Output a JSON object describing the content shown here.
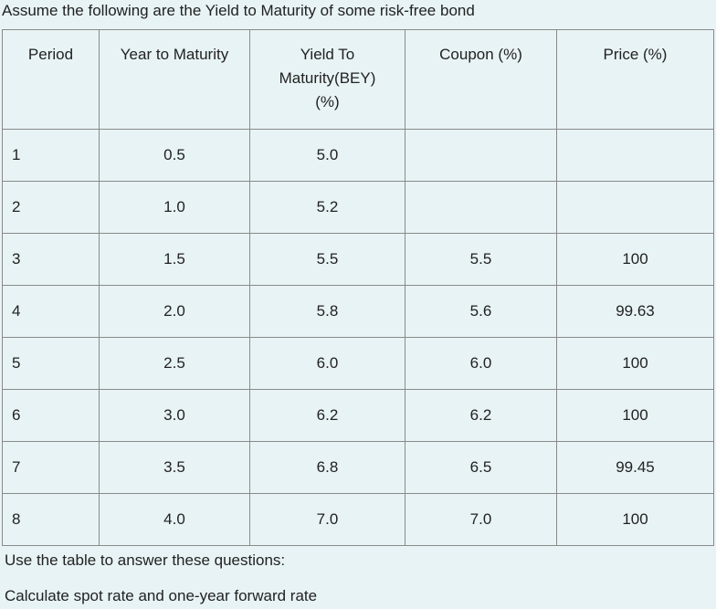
{
  "intro_text": "Assume the following are the Yield to Maturity of some risk-free bond",
  "table": {
    "headers": {
      "period": "Period",
      "years": "Year to Maturity",
      "ytm_line1": "Yield To",
      "ytm_line2": "Maturity(BEY)",
      "ytm_line3": "(%)",
      "coupon": "Coupon (%)",
      "price": "Price (%)"
    },
    "rows": [
      {
        "period": "1",
        "years": "0.5",
        "ytm": "5.0",
        "coupon": "",
        "price": ""
      },
      {
        "period": "2",
        "years": "1.0",
        "ytm": "5.2",
        "coupon": "",
        "price": ""
      },
      {
        "period": "3",
        "years": "1.5",
        "ytm": "5.5",
        "coupon": "5.5",
        "price": "100"
      },
      {
        "period": "4",
        "years": "2.0",
        "ytm": "5.8",
        "coupon": "5.6",
        "price": "99.63"
      },
      {
        "period": "5",
        "years": "2.5",
        "ytm": "6.0",
        "coupon": "6.0",
        "price": "100"
      },
      {
        "period": "6",
        "years": "3.0",
        "ytm": "6.2",
        "coupon": "6.2",
        "price": "100"
      },
      {
        "period": "7",
        "years": "3.5",
        "ytm": "6.8",
        "coupon": "6.5",
        "price": "99.45"
      },
      {
        "period": "8",
        "years": "4.0",
        "ytm": "7.0",
        "coupon": "7.0",
        "price": "100"
      }
    ]
  },
  "question_intro": "Use the table to answer these questions:",
  "question": "Calculate spot rate and one-year forward rate"
}
